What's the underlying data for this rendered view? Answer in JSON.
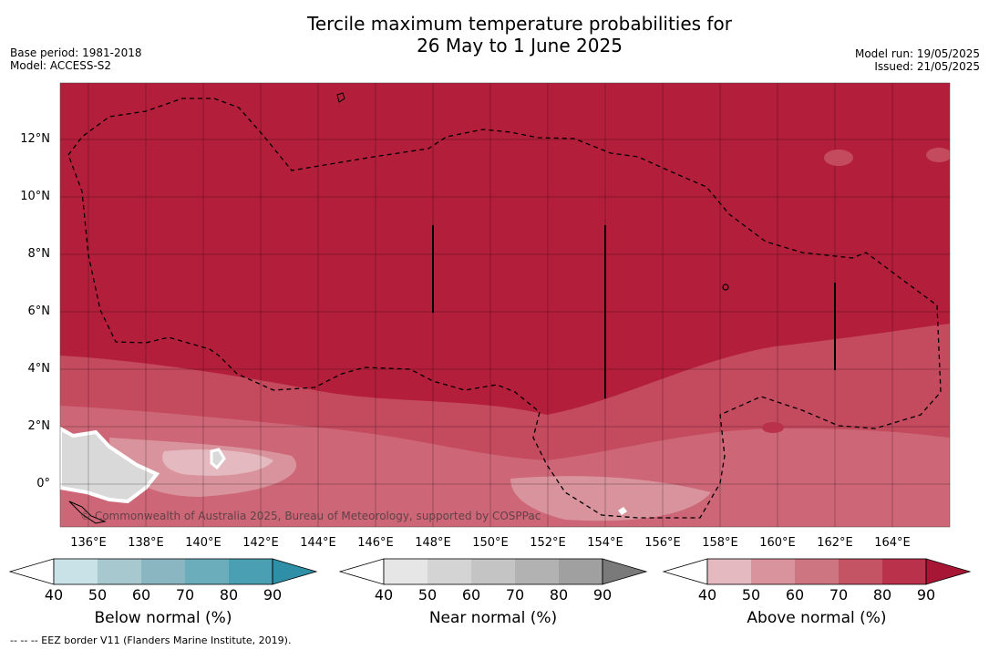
{
  "header": {
    "title_line1": "Tercile maximum temperature probabilities for",
    "title_line2": "26 May to 1 June 2025",
    "base_period": "Base period: 1981-2018",
    "model": "Model: ACCESS-S2",
    "model_run": "Model run: 19/05/2025",
    "issued": "Issued: 21/05/2025"
  },
  "map": {
    "lat_labels": [
      "12°N",
      "10°N",
      "8°N",
      "6°N",
      "4°N",
      "2°N",
      "0°"
    ],
    "lon_labels": [
      "136°E",
      "138°E",
      "140°E",
      "142°E",
      "144°E",
      "146°E",
      "148°E",
      "150°E",
      "152°E",
      "154°E",
      "156°E",
      "158°E",
      "160°E",
      "162°E",
      "164°E"
    ],
    "watermark": "© Commonwealth of Australia 2025, Bureau of Meteorology, supported by COSPPac",
    "base_color": "#b31f3a"
  },
  "colorbars": [
    {
      "label": "Below normal (%)",
      "ticks": [
        "40",
        "50",
        "60",
        "70",
        "80",
        "90"
      ],
      "colors": [
        "#c9e2e8",
        "#a8c8d0",
        "#8ab6c2",
        "#6badbb",
        "#4aa0b2",
        "#2f8fa6"
      ]
    },
    {
      "label": "Near normal (%)",
      "ticks": [
        "40",
        "50",
        "60",
        "70",
        "80",
        "90"
      ],
      "colors": [
        "#e6e6e6",
        "#d4d4d4",
        "#c4c4c4",
        "#b2b2b2",
        "#a0a0a0",
        "#7a7a7a"
      ]
    },
    {
      "label": "Above normal (%)",
      "ticks": [
        "40",
        "50",
        "60",
        "70",
        "80",
        "90"
      ],
      "colors": [
        "#e4b9c0",
        "#d8939c",
        "#cd7580",
        "#c45364",
        "#b9314a",
        "#a81636"
      ]
    }
  ],
  "footnote": "--  --  -- EEZ border V11 (Flanders Marine Institute, 2019)."
}
